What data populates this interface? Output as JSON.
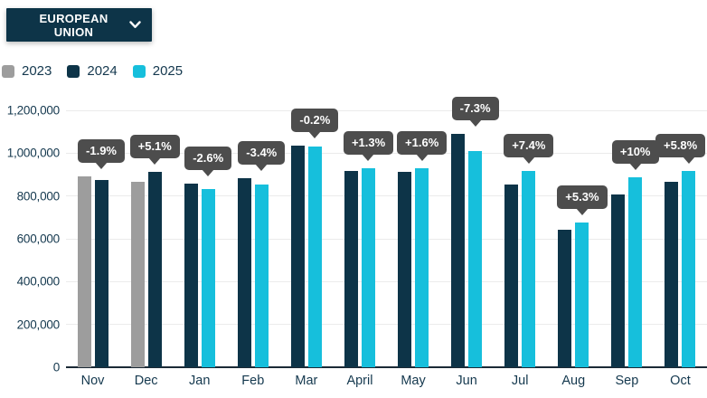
{
  "header": {
    "region_selector_label": "EUROPEAN UNION",
    "chevron_icon": "chevron-down"
  },
  "legend": [
    {
      "label": "2023",
      "color": "#9d9d9d"
    },
    {
      "label": "2024",
      "color": "#0d3448"
    },
    {
      "label": "2025",
      "color": "#16bfdc"
    }
  ],
  "colors": {
    "accent_navy": "#0d3448",
    "accent_cyan": "#16bfdc",
    "neutral_gray": "#9d9d9d",
    "tooltip_bg": "#4d4d4d",
    "axis_text": "#14384e"
  },
  "chart_data": {
    "type": "bar",
    "title": "",
    "xlabel": "",
    "ylabel": "",
    "categories": [
      "Nov",
      "Dec",
      "Jan",
      "Feb",
      "Mar",
      "April",
      "May",
      "Jun",
      "Jul",
      "Aug",
      "Sep",
      "Oct"
    ],
    "series": [
      {
        "name": "2023",
        "color": "#9d9d9d",
        "values": [
          890000,
          867000,
          null,
          null,
          null,
          null,
          null,
          null,
          null,
          null,
          null,
          null
        ]
      },
      {
        "name": "2024",
        "color": "#0d3448",
        "values": [
          873000,
          911000,
          856000,
          884000,
          1035000,
          918000,
          913000,
          1090000,
          855000,
          643000,
          807000,
          868000
        ]
      },
      {
        "name": "2025",
        "color": "#16bfdc",
        "values": [
          null,
          null,
          834000,
          854000,
          1033000,
          930000,
          928000,
          1010000,
          918000,
          677000,
          888000,
          918000
        ]
      }
    ],
    "change_labels": [
      "-1.9%",
      "+5.1%",
      "-2.6%",
      "-3.4%",
      "-0.2%",
      "+1.3%",
      "+1.6%",
      "-7.3%",
      "+7.4%",
      "+5.3%",
      "+10%",
      "+5.8%"
    ],
    "y_ticks": [
      "0",
      "200,000",
      "400,000",
      "600,000",
      "800,000",
      "1,000,000",
      "1,200,000"
    ],
    "ylim": [
      0,
      1200000
    ],
    "grid": true,
    "legend_position": "top-left"
  }
}
